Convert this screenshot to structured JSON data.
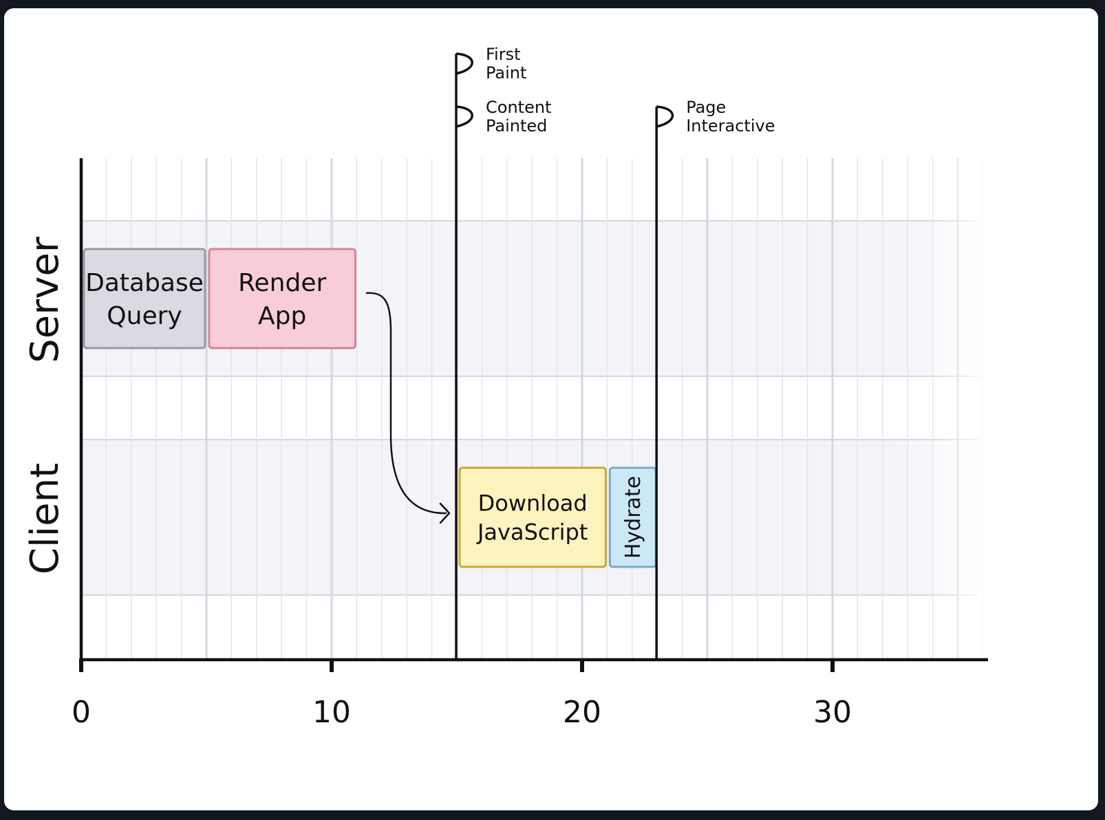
{
  "lanes": [
    {
      "name": "Server"
    },
    {
      "name": "Client"
    }
  ],
  "axis": {
    "ticks": [
      "0",
      "10",
      "20",
      "30"
    ],
    "min": 0,
    "max": 36
  },
  "tasks": [
    {
      "lane": "Server",
      "lines": [
        "Database",
        "Query"
      ],
      "start": 0,
      "end": 5,
      "fill": "#dcd9e2",
      "stroke": "#9a97a5"
    },
    {
      "lane": "Server",
      "lines": [
        "Render",
        "App"
      ],
      "start": 5,
      "end": 11,
      "fill": "#f9cdd8",
      "stroke": "#d0849a"
    },
    {
      "lane": "Client",
      "lines": [
        "Download",
        "JavaScript"
      ],
      "start": 15,
      "end": 21,
      "fill": "#fdf3bf",
      "stroke": "#c9a92e"
    },
    {
      "lane": "Client",
      "lines": [
        "Hydrate"
      ],
      "start": 21,
      "end": 23,
      "fill": "#cce8f7",
      "stroke": "#7aa9c7",
      "vertical": true
    }
  ],
  "markers": [
    {
      "time": 15,
      "flags": [
        [
          "First",
          "Paint"
        ],
        [
          "Content",
          "Painted"
        ]
      ]
    },
    {
      "time": 23,
      "flags": [
        [
          "Page",
          "Interactive"
        ]
      ]
    }
  ],
  "colors": {
    "lane_band": "#f3f4f8",
    "grid_minor": "#e4e5ea",
    "grid_major": "#d6d7df",
    "axis": "#111111"
  }
}
